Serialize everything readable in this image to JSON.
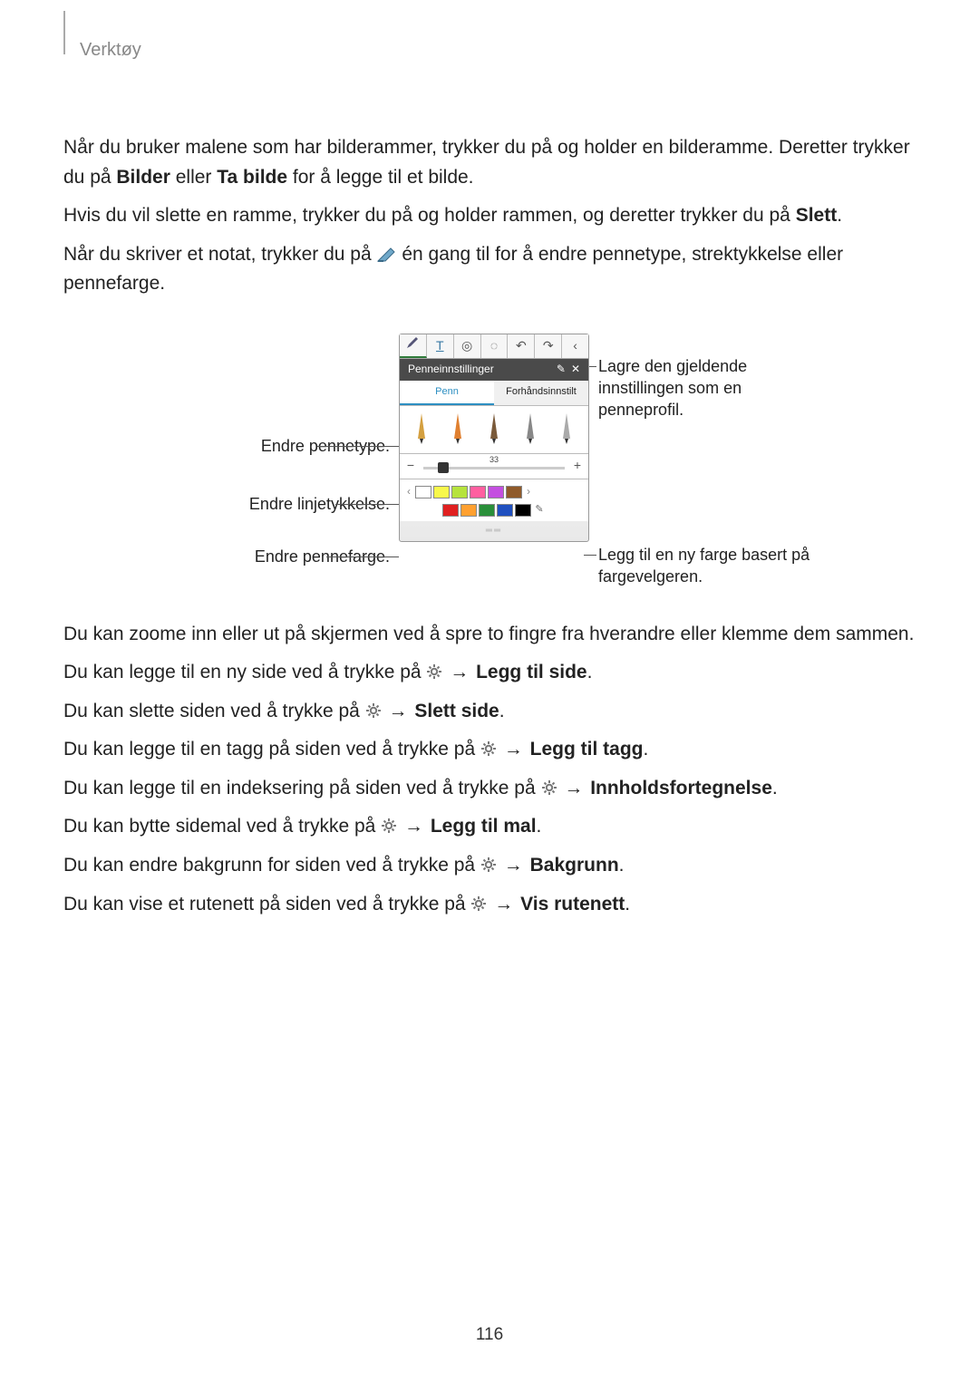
{
  "header": {
    "section": "Verktøy"
  },
  "p1": {
    "before": "Når du bruker malene som har bilderammer, trykker du på og holder en bilderamme. Deretter trykker du på ",
    "bold1": "Bilder",
    "mid": " eller ",
    "bold2": "Ta bilde",
    "after": " for å legge til et bilde."
  },
  "p2": {
    "before": "Hvis du vil slette en ramme, trykker du på og holder rammen, og deretter trykker du på ",
    "bold1": "Slett",
    "after": "."
  },
  "p3": {
    "before": "Når du skriver et notat, trykker du på ",
    "after": " én gang til for å endre pennetype, strektykkelse eller pennefarge."
  },
  "figure": {
    "settings_title": "Penneinnstillinger",
    "tab_pen": "Penn",
    "tab_preset": "Forhåndsinnstilt",
    "thickness_value": "33",
    "callouts": {
      "left1": "Endre pennetype.",
      "left2": "Endre linjetykkelse.",
      "left3": "Endre pennefarge.",
      "right1": "Lagre den gjeldende innstillingen som en penneprofil.",
      "right2": "Legg til en ny farge basert på fargevelgeren."
    },
    "palette_row1": [
      "#ffffff",
      "#f8f84a",
      "#b6e33d",
      "#ff5fa0",
      "#c44fe0",
      "#8f5a2a"
    ],
    "palette_row2": [
      "#e02020",
      "#ffa030",
      "#2a8f3a",
      "#2050c0",
      "#000000"
    ]
  },
  "p4": "Du kan zoome inn eller ut på skjermen ved å spre to fingre fra hverandre eller klemme dem sammen.",
  "menu_items": [
    {
      "before": "Du kan legge til en ny side ved å trykke på ",
      "bold": "Legg til side"
    },
    {
      "before": "Du kan slette siden ved å trykke på ",
      "bold": "Slett side"
    },
    {
      "before": "Du kan legge til en tagg på siden ved å trykke på ",
      "bold": "Legg til tagg"
    },
    {
      "before": "Du kan legge til en indeksering på siden ved å trykke på ",
      "bold": "Innholdsfortegnelse"
    },
    {
      "before": "Du kan bytte sidemal ved å trykke på ",
      "bold": "Legg til mal"
    },
    {
      "before": "Du kan endre bakgrunn for siden ved å trykke på ",
      "bold": "Bakgrunn"
    },
    {
      "before": "Du kan vise et rutenett på siden ved å trykke på ",
      "bold": "Vis rutenett"
    }
  ],
  "arrow": "→",
  "page_number": "116"
}
